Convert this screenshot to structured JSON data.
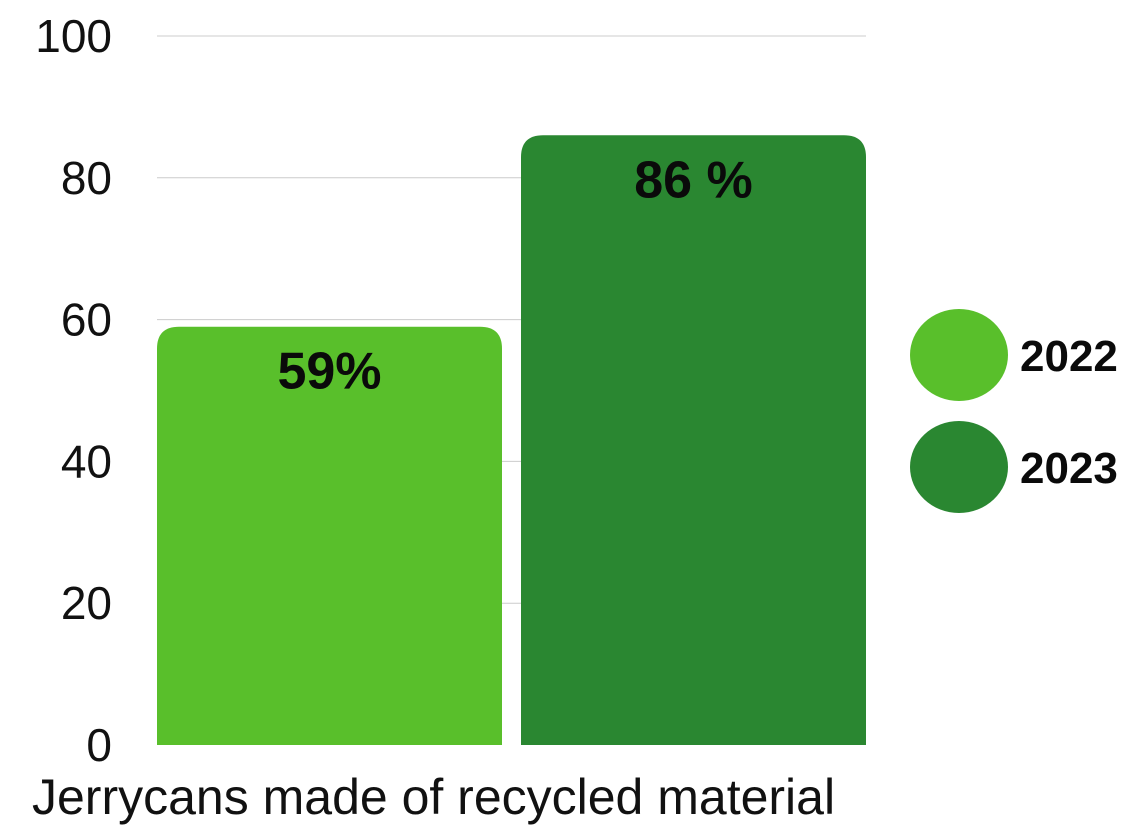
{
  "chart_data": {
    "type": "bar",
    "categories": [
      "Jerrycans made of recycled material"
    ],
    "series": [
      {
        "name": "2022",
        "values": [
          59
        ],
        "label": "59%",
        "color": "#59bf2b"
      },
      {
        "name": "2023",
        "values": [
          86
        ],
        "label": "86 %",
        "color": "#2a8731"
      }
    ],
    "yticks": [
      "0",
      "20",
      "40",
      "60",
      "80",
      "100"
    ],
    "ylim": [
      0,
      100
    ],
    "xlabel": "Jerrycans made of recycled material",
    "grid": true,
    "legend_position": "right"
  }
}
